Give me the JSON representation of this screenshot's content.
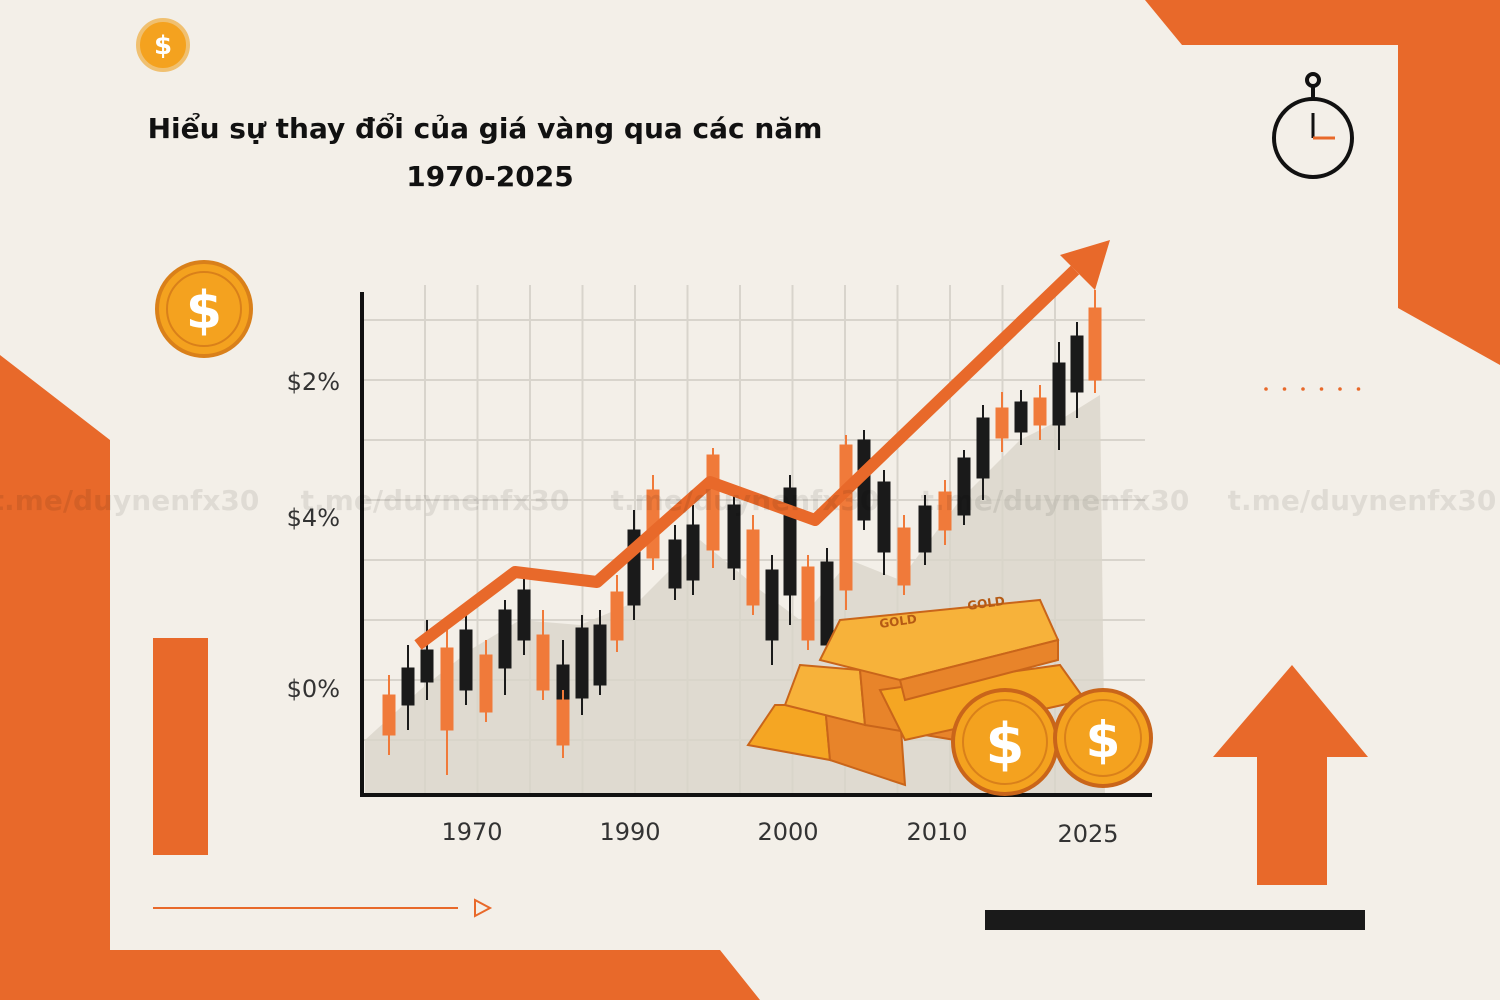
{
  "title": {
    "line1": "Hiểu sự thay đổi của giá vàng qua các năm",
    "line2": "1970-2025"
  },
  "chart": {
    "y_labels": [
      "$2%",
      "$4%",
      "$0%"
    ],
    "x_labels": [
      "1970",
      "1990",
      "2000",
      "2010",
      "2025"
    ]
  },
  "watermark": "t.me/duynenfx30",
  "coin_symbol": "$",
  "bar_label": "GOLD"
}
